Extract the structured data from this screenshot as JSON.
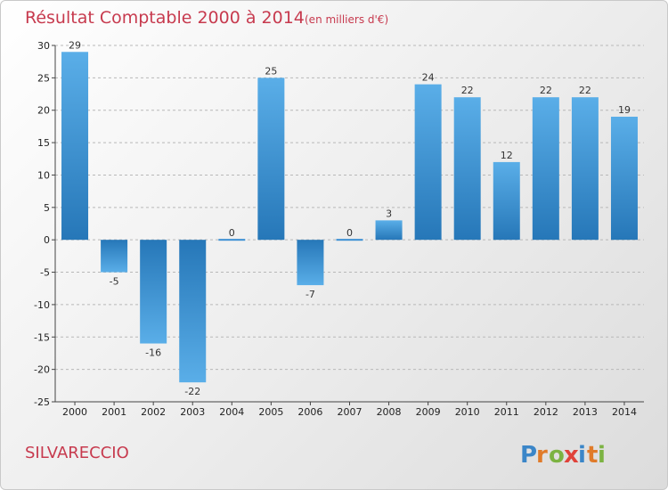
{
  "title": "Résultat Comptable 2000 à 2014",
  "subtitle": "(en milliers d'€)",
  "commune": "SILVARECCIO",
  "brand": {
    "letters": [
      "P",
      "r",
      "o",
      "x",
      "i",
      "t",
      "i"
    ],
    "colors": [
      "#3b86c8",
      "#e07b2a",
      "#7cb342",
      "#e0423a",
      "#3b86c8",
      "#e07b2a",
      "#7cb342"
    ]
  },
  "colors": {
    "title": "#c73a4e",
    "bar_light": "#5aaee8",
    "bar_dark": "#2677b8"
  },
  "chart_data": {
    "type": "bar",
    "categories": [
      "2000",
      "2001",
      "2002",
      "2003",
      "2004",
      "2005",
      "2006",
      "2007",
      "2008",
      "2009",
      "2010",
      "2011",
      "2012",
      "2013",
      "2014"
    ],
    "values": [
      29,
      -5,
      -16,
      -22,
      0,
      25,
      -7,
      0,
      3,
      24,
      22,
      12,
      22,
      22,
      19
    ],
    "ylim": [
      -25,
      30
    ],
    "yticks": [
      30,
      25,
      20,
      15,
      10,
      5,
      0,
      -5,
      -10,
      -15,
      -20,
      -25
    ],
    "grid": true,
    "xlabel": "",
    "ylabel": ""
  }
}
